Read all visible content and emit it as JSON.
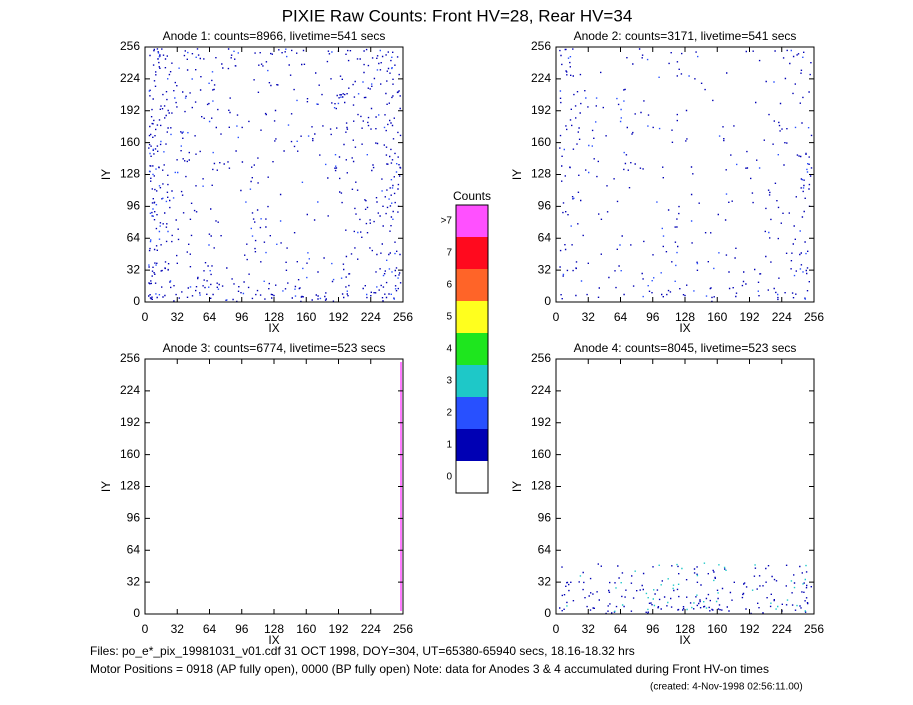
{
  "title": "PIXIE Raw Counts:  Front HV=28, Rear HV=34",
  "chart_data": [
    {
      "type": "heatmap",
      "title": "Anode 1: counts=8966, livetime=541 secs",
      "x_label": "IX",
      "y_label": "IY",
      "xlim": [
        0,
        256
      ],
      "ylim": [
        0,
        256
      ],
      "xticks": [
        0,
        32,
        64,
        96,
        128,
        160,
        192,
        224,
        256
      ],
      "yticks": [
        0,
        32,
        64,
        96,
        128,
        160,
        192,
        224,
        256
      ]
    },
    {
      "type": "heatmap",
      "title": "Anode 2: counts=3171, livetime=541 secs",
      "x_label": "IX",
      "y_label": "IY",
      "xlim": [
        0,
        256
      ],
      "ylim": [
        0,
        256
      ],
      "xticks": [
        0,
        32,
        64,
        96,
        128,
        160,
        192,
        224,
        256
      ],
      "yticks": [
        0,
        32,
        64,
        96,
        128,
        160,
        192,
        224,
        256
      ]
    },
    {
      "type": "heatmap",
      "title": "Anode 3: counts=6774, livetime=523 secs",
      "x_label": "IX",
      "y_label": "IY",
      "xlim": [
        0,
        256
      ],
      "ylim": [
        0,
        256
      ],
      "xticks": [
        0,
        32,
        64,
        96,
        128,
        160,
        192,
        224,
        256
      ],
      "yticks": [
        0,
        32,
        64,
        96,
        128,
        160,
        192,
        224,
        256
      ]
    },
    {
      "type": "heatmap",
      "title": "Anode 4: counts=8045, livetime=523 secs",
      "x_label": "IX",
      "y_label": "IY",
      "xlim": [
        0,
        256
      ],
      "ylim": [
        0,
        256
      ],
      "xticks": [
        0,
        32,
        64,
        96,
        128,
        160,
        192,
        224,
        256
      ],
      "yticks": [
        0,
        32,
        64,
        96,
        128,
        160,
        192,
        224,
        256
      ]
    }
  ],
  "colorbar": {
    "title": "Counts",
    "labels": [
      "0",
      "1",
      "2",
      "3",
      "4",
      "5",
      "6",
      "7",
      ">7"
    ],
    "colors": [
      "#ffffff",
      "#0000b4",
      "#2850ff",
      "#1ec8c8",
      "#1ee61e",
      "#ffff1e",
      "#ff6428",
      "#ff0a1e",
      "#ff50ff"
    ]
  },
  "footer": [
    "Files: po_e*_pix_19981031_v01.cdf    31 OCT 1998, DOY=304, UT=65380-65940 secs, 18.16-18.32 hrs",
    "Motor Positions = 0918 (AP fully open), 0000 (BP fully open)    Note: data for Anodes 3 & 4 accumulated during Front HV-on times",
    "(created:  4-Nov-1998 02:56:11.00)"
  ]
}
